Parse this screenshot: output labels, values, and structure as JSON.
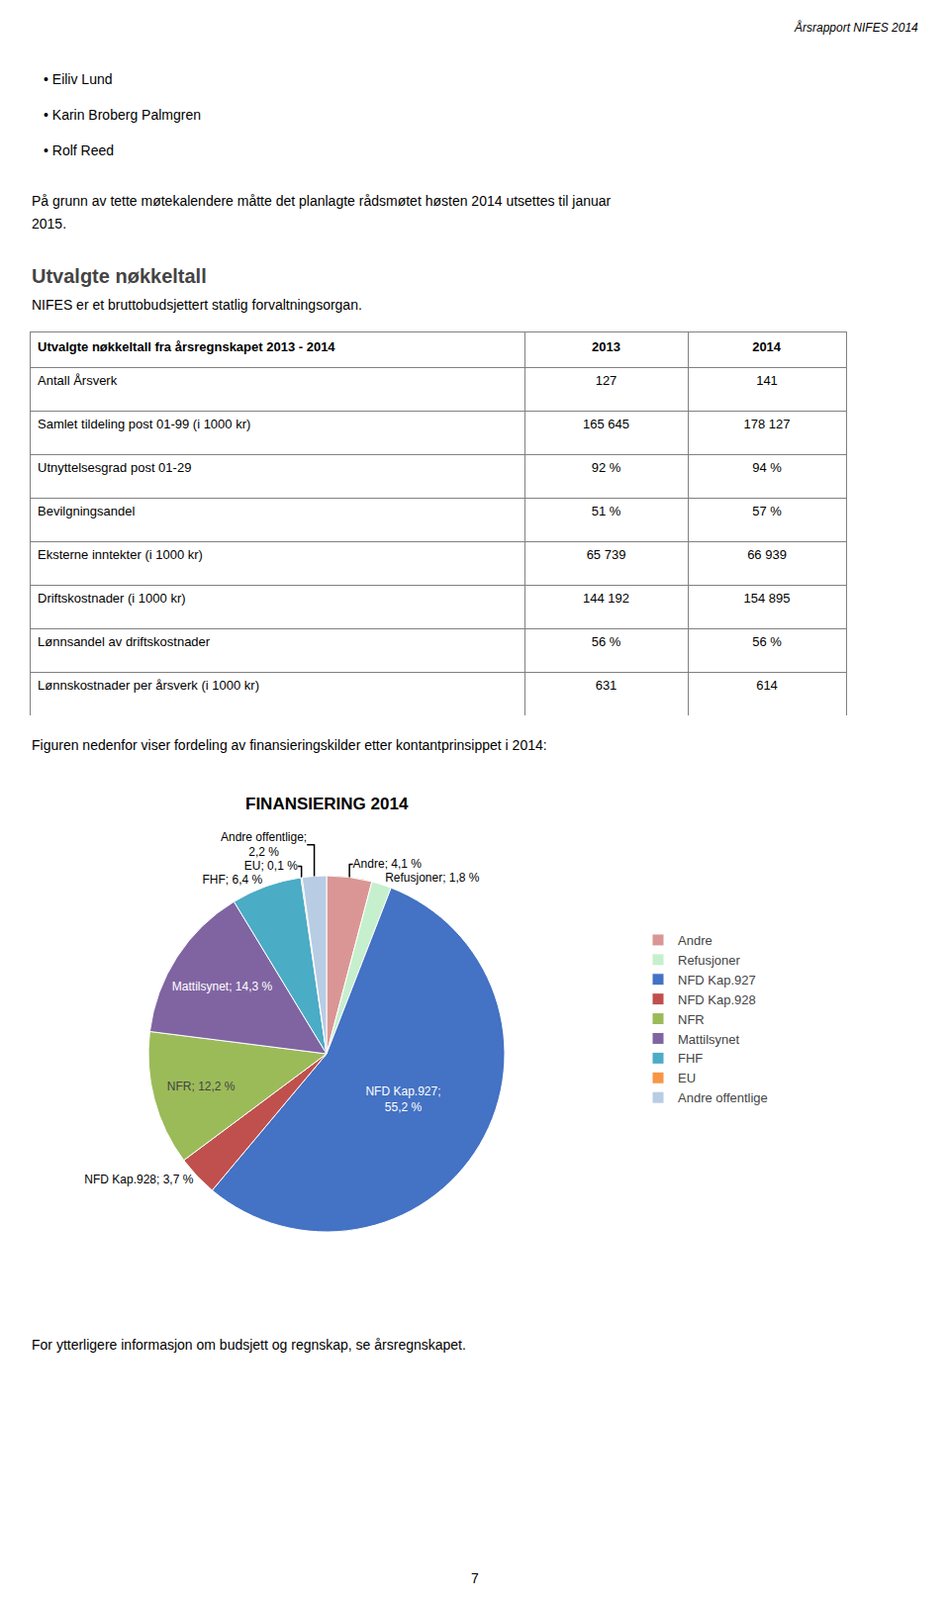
{
  "chart_data": [
    {
      "type": "table",
      "title": "Utvalgte nøkkeltall",
      "subtitle": "NIFES er et bruttobudsjettert statlig forvaltningsorgan.",
      "columns": [
        "Utvalgte nøkkeltall fra årsregnskapet 2013 - 2014",
        "2013",
        "2014"
      ],
      "rows": [
        [
          "Antall Årsverk",
          "127",
          "141"
        ],
        [
          "Samlet tildeling post 01-99 (i 1000 kr)",
          "165 645",
          "178 127"
        ],
        [
          "Utnyttelsesgrad post 01-29",
          "92 %",
          "94 %"
        ],
        [
          "Bevilgningsandel",
          "51 %",
          "57 %"
        ],
        [
          "Eksterne inntekter (i 1000 kr)",
          "65 739",
          "66 939"
        ],
        [
          "Driftskostnader (i 1000 kr)",
          "144 192",
          "154 895"
        ],
        [
          "Lønnsandel av driftskostnader",
          "56 %",
          "56 %"
        ],
        [
          "Lønnskostnader per årsverk (i 1000 kr)",
          "631",
          "614"
        ]
      ]
    },
    {
      "type": "pie",
      "title": "FINANSIERING 2014",
      "categories": [
        "Andre",
        "Refusjoner",
        "NFD Kap.927",
        "NFD Kap.928",
        "NFR",
        "Mattilsynet",
        "FHF",
        "EU",
        "Andre offentlige"
      ],
      "values": [
        4.1,
        1.8,
        55.2,
        3.7,
        12.2,
        14.3,
        6.4,
        0.1,
        2.2
      ],
      "value_labels": [
        "Andre; 4,1 %",
        "Refusjoner; 1,8 %",
        "NFD Kap.927;\n55,2 %",
        "NFD Kap.928; 3,7 %",
        "NFR; 12,2 %",
        "Mattilsynet; 14,3 %",
        "FHF; 6,4 %",
        "EU; 0,1 %",
        "Andre offentlige;\n2,2 %"
      ],
      "colors": [
        "#DA9694",
        "#C6EFCE",
        "#4472C4",
        "#C0504D",
        "#9BBB59",
        "#8064A2",
        "#4BACC6",
        "#F79646",
        "#B8CCE4"
      ],
      "data_labels": true,
      "legend": "right"
    }
  ],
  "annotations": [
    "Årsrapport NIFES 2014",
    "• Eiliv Lund",
    "• Karin Broberg Palmgren",
    "• Rolf Reed",
    "På grunn av tette møtekalendere måtte det planlagte rådsmøtet høsten 2014 utsettes til januar",
    "2015.",
    "Figuren nedenfor viser fordeling av finansieringskilder etter kontantprinsippet i 2014:",
    "For ytterligere informasjon om budsjett og regnskap, se årsregnskapet.",
    "7"
  ]
}
